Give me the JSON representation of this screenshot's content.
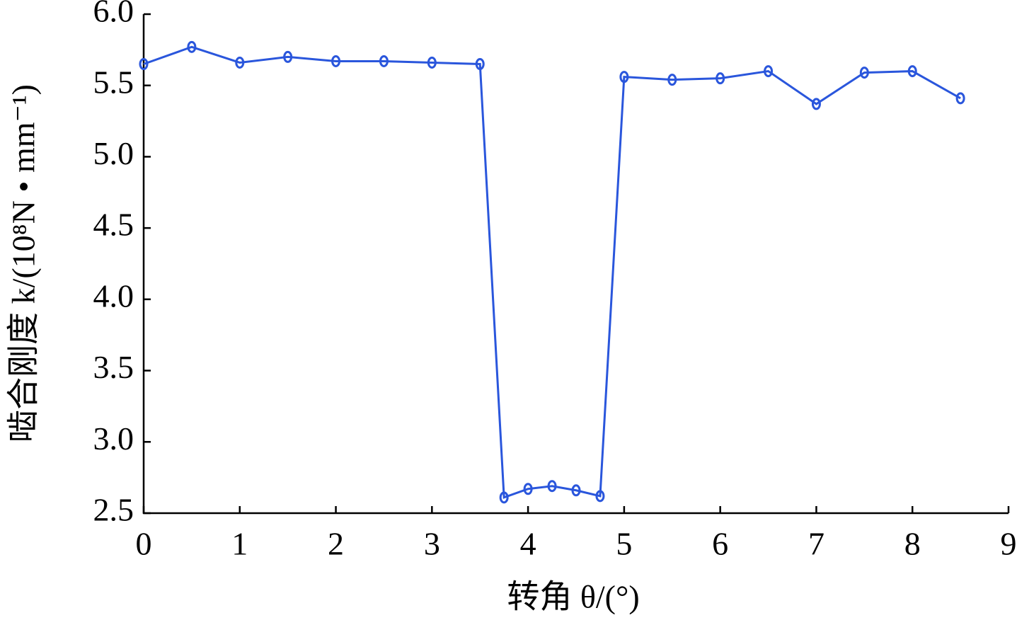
{
  "chart_data": {
    "type": "line",
    "xlabel": "转角 θ/(°)",
    "ylabel": "啮合刚度 k/(10⁸N • mm⁻¹)",
    "x": [
      0,
      0.5,
      1,
      1.5,
      2,
      2.5,
      3,
      3.5,
      3.75,
      4,
      4.25,
      4.5,
      4.75,
      5,
      5.5,
      6,
      6.5,
      7,
      7.5,
      8,
      8.5
    ],
    "series": [
      {
        "color": "#2a56dc",
        "values": [
          5.65,
          5.77,
          5.66,
          5.7,
          5.67,
          5.67,
          5.66,
          5.65,
          2.61,
          2.67,
          2.69,
          2.66,
          2.62,
          5.56,
          5.54,
          5.55,
          5.6,
          5.37,
          5.59,
          5.6,
          5.41
        ]
      }
    ],
    "xlim": [
      0,
      9
    ],
    "xticks": [
      0,
      1,
      2,
      3,
      4,
      5,
      6,
      7,
      8,
      9
    ],
    "ylim": [
      2.5,
      6.0
    ],
    "yticks": [
      2.5,
      {
        "value": 3,
        "label": "3.0"
      },
      3.5,
      {
        "value": 4,
        "label": "4.0"
      },
      4.5,
      {
        "value": 5,
        "label": "5.0"
      },
      5.5,
      {
        "value": 6,
        "label": "6.0"
      }
    ]
  }
}
